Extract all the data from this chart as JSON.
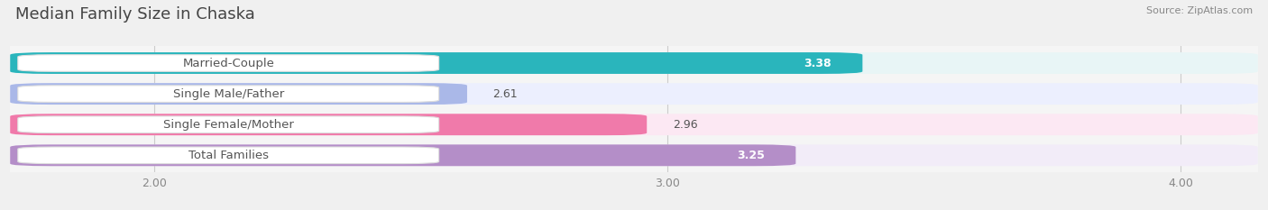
{
  "title": "Median Family Size in Chaska",
  "source": "Source: ZipAtlas.com",
  "categories": [
    "Married-Couple",
    "Single Male/Father",
    "Single Female/Mother",
    "Total Families"
  ],
  "values": [
    3.38,
    2.61,
    2.96,
    3.25
  ],
  "bar_colors": [
    "#2ab5bc",
    "#aab8e8",
    "#f07aaa",
    "#b48ec8"
  ],
  "bar_bg_colors": [
    "#e8f5f6",
    "#eceffe",
    "#fce8f3",
    "#f2ecf8"
  ],
  "value_inside": [
    true,
    false,
    false,
    true
  ],
  "xlim_left": 1.72,
  "xlim_right": 4.15,
  "xticks": [
    2.0,
    3.0,
    4.0
  ],
  "xtick_labels": [
    "2.00",
    "3.00",
    "4.00"
  ],
  "label_fontsize": 9.5,
  "value_fontsize": 9,
  "title_fontsize": 13,
  "bar_height": 0.7,
  "bar_gap": 0.3,
  "figsize": [
    14.06,
    2.33
  ],
  "bg_color": "#f0f0f0",
  "plot_bg": "#f5f5f5"
}
